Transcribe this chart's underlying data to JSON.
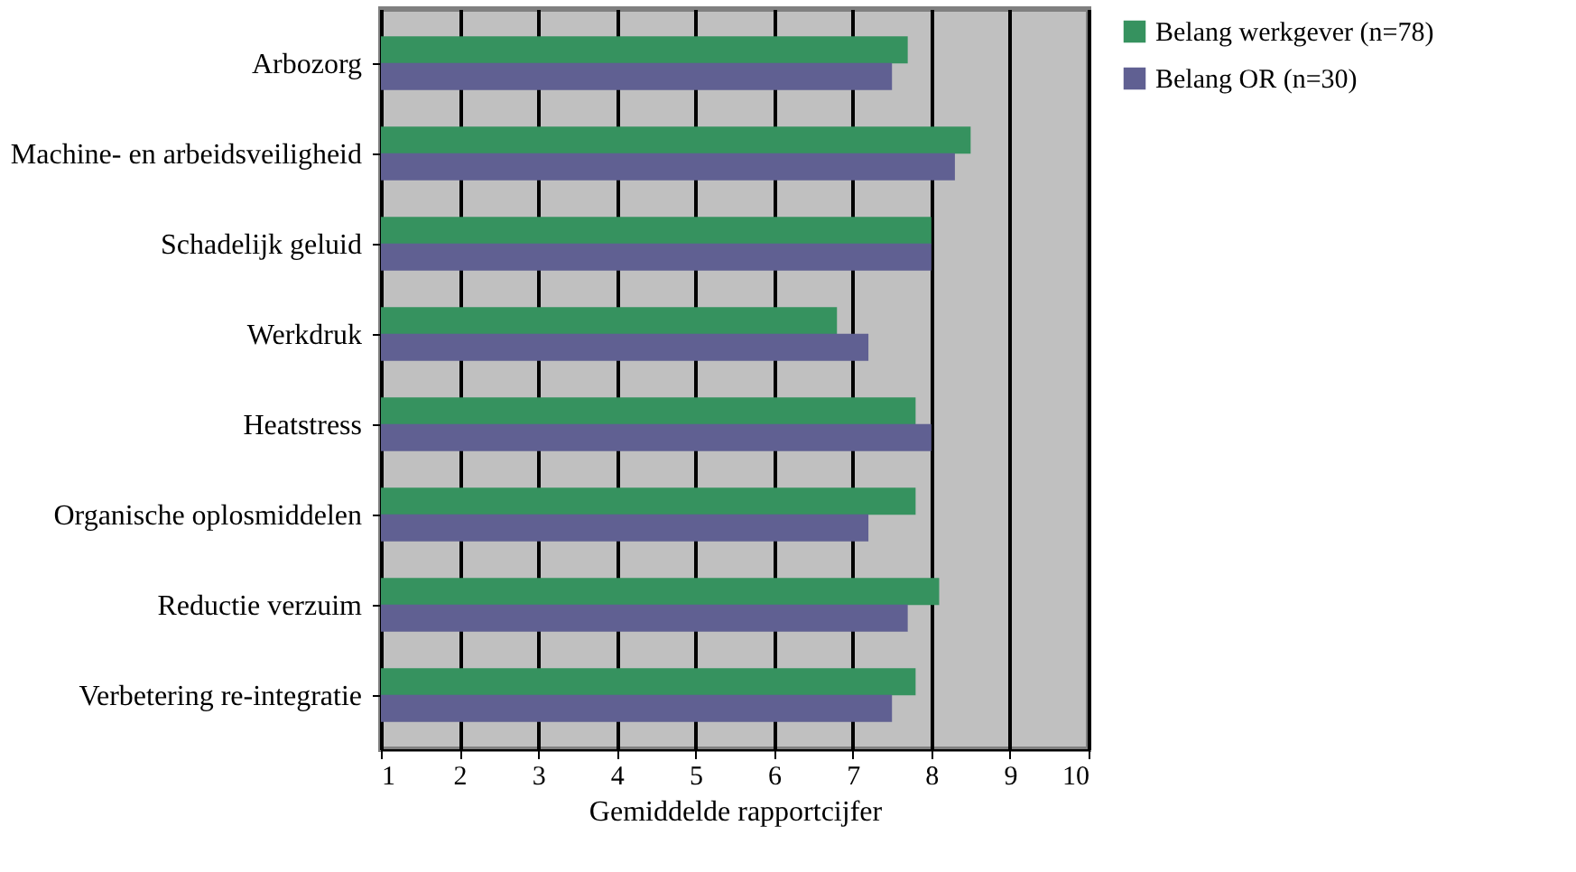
{
  "chart_data": {
    "type": "bar",
    "orientation": "horizontal",
    "xlabel": "Gemiddelde rapportcijfer",
    "categories": [
      "Arbozorg",
      "Machine- en arbeidsveiligheid",
      "Schadelijk geluid",
      "Werkdruk",
      "Heatstress",
      "Organische oplosmiddelen",
      "Reductie verzuim",
      "Verbetering re-integratie"
    ],
    "series": [
      {
        "name": "Belang werkgever (n=78)",
        "color": "#36925f",
        "values": [
          7.7,
          8.5,
          8.0,
          6.8,
          7.8,
          7.8,
          8.1,
          7.8
        ]
      },
      {
        "name": "Belang OR (n=30)",
        "color": "#606092",
        "values": [
          7.5,
          8.3,
          8.0,
          7.2,
          8.0,
          7.2,
          7.7,
          7.5
        ]
      }
    ],
    "xlim": [
      1,
      10
    ],
    "xticks": [
      1,
      2,
      3,
      4,
      5,
      6,
      7,
      8,
      9,
      10
    ],
    "grid": "x",
    "legend": "top right"
  }
}
